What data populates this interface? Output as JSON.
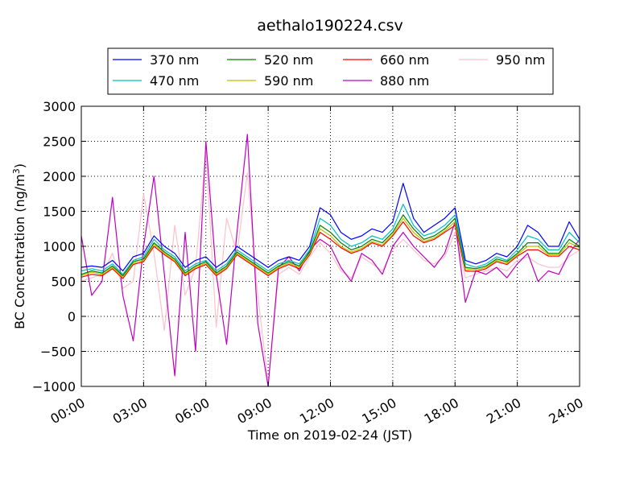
{
  "chart_data": {
    "type": "line",
    "title": "aethalo190224.csv",
    "xlabel": "Time on 2019-02-24 (JST)",
    "ylabel": "BC Concentration (ng/m³)",
    "ylabel_base": "BC Concentration (ng/m",
    "ylabel_sup": "3",
    "ylabel_tail": ")",
    "xlim": [
      0,
      24
    ],
    "ylim": [
      -1000,
      3000
    ],
    "x_ticks": [
      0,
      3,
      6,
      9,
      12,
      15,
      18,
      21,
      24
    ],
    "x_tick_labels": [
      "00:00",
      "03:00",
      "06:00",
      "09:00",
      "12:00",
      "15:00",
      "18:00",
      "21:00",
      "24:00"
    ],
    "y_ticks": [
      -1000,
      -500,
      0,
      500,
      1000,
      1500,
      2000,
      2500,
      3000
    ],
    "y_tick_labels": [
      "−1000",
      "−500",
      "0",
      "500",
      "1000",
      "1500",
      "2000",
      "2500",
      "3000"
    ],
    "grid": true,
    "legend_placement": "top-center, above plot",
    "x": [
      0,
      0.5,
      1,
      1.5,
      2,
      2.5,
      3,
      3.5,
      4,
      4.5,
      5,
      5.5,
      6,
      6.5,
      7,
      7.5,
      8,
      8.5,
      9,
      9.5,
      10,
      10.5,
      11,
      11.5,
      12,
      12.5,
      13,
      13.5,
      14,
      14.5,
      15,
      15.5,
      16,
      16.5,
      17,
      17.5,
      18,
      18.5,
      19,
      19.5,
      20,
      20.5,
      21,
      21.5,
      22,
      22.5,
      23,
      23.5,
      24
    ],
    "series": [
      {
        "name": "370 nm",
        "color": "#0000ff",
        "values": [
          700,
          720,
          700,
          800,
          650,
          850,
          900,
          1150,
          1000,
          900,
          700,
          800,
          850,
          700,
          800,
          1000,
          900,
          800,
          700,
          800,
          850,
          800,
          1000,
          1550,
          1450,
          1200,
          1100,
          1150,
          1250,
          1200,
          1350,
          1900,
          1400,
          1200,
          1300,
          1400,
          1550,
          800,
          750,
          800,
          900,
          850,
          1000,
          1300,
          1200,
          1000,
          1000,
          1350,
          1100
        ]
      },
      {
        "name": "470 nm",
        "color": "#00bfbf",
        "values": [
          650,
          680,
          650,
          750,
          600,
          800,
          850,
          1100,
          950,
          850,
          650,
          750,
          800,
          650,
          750,
          950,
          850,
          750,
          650,
          750,
          800,
          750,
          950,
          1400,
          1300,
          1100,
          1000,
          1050,
          1150,
          1100,
          1250,
          1600,
          1300,
          1150,
          1200,
          1300,
          1450,
          750,
          700,
          750,
          850,
          800,
          950,
          1150,
          1100,
          950,
          950,
          1200,
          1050
        ]
      },
      {
        "name": "520 nm",
        "color": "#008000",
        "values": [
          600,
          650,
          620,
          720,
          580,
          780,
          820,
          1050,
          920,
          820,
          620,
          720,
          780,
          620,
          720,
          920,
          820,
          720,
          620,
          720,
          780,
          720,
          920,
          1300,
          1200,
          1050,
          950,
          1000,
          1100,
          1050,
          1200,
          1450,
          1250,
          1100,
          1150,
          1250,
          1400,
          700,
          680,
          720,
          820,
          780,
          900,
          1050,
          1050,
          900,
          900,
          1100,
          1000
        ]
      },
      {
        "name": "590 nm",
        "color": "#bfbf00",
        "values": [
          580,
          630,
          600,
          700,
          560,
          760,
          800,
          1030,
          900,
          800,
          600,
          700,
          760,
          600,
          700,
          900,
          800,
          700,
          600,
          700,
          760,
          700,
          900,
          1250,
          1150,
          1000,
          920,
          970,
          1070,
          1020,
          1170,
          1400,
          1200,
          1070,
          1120,
          1220,
          1350,
          680,
          660,
          700,
          800,
          760,
          880,
          1000,
          1000,
          880,
          880,
          1050,
          980
        ]
      },
      {
        "name": "660 nm",
        "color": "#ff0000",
        "values": [
          560,
          600,
          580,
          680,
          540,
          740,
          780,
          1000,
          880,
          780,
          580,
          680,
          740,
          580,
          680,
          880,
          780,
          680,
          580,
          680,
          740,
          680,
          880,
          1200,
          1100,
          980,
          900,
          950,
          1050,
          1000,
          1150,
          1350,
          1150,
          1050,
          1100,
          1200,
          1300,
          650,
          640,
          680,
          780,
          740,
          860,
          950,
          950,
          860,
          860,
          1000,
          950
        ]
      },
      {
        "name": "880 nm",
        "color": "#bf00bf",
        "values": [
          1150,
          300,
          500,
          1700,
          300,
          -350,
          1000,
          2000,
          600,
          -850,
          1200,
          -500,
          2500,
          600,
          -400,
          1200,
          2600,
          -100,
          -1000,
          700,
          850,
          650,
          950,
          1100,
          1000,
          700,
          500,
          900,
          800,
          600,
          1000,
          1200,
          1000,
          850,
          700,
          900,
          1350,
          200,
          650,
          600,
          700,
          550,
          750,
          900,
          500,
          650,
          600,
          900,
          1100
        ]
      },
      {
        "name": "950 nm",
        "color": "#ffc0cb",
        "values": [
          500,
          550,
          600,
          900,
          400,
          500,
          1750,
          900,
          -200,
          1300,
          300,
          700,
          2350,
          -150,
          1400,
          900,
          2050,
          300,
          -950,
          600,
          700,
          600,
          850,
          1050,
          900,
          650,
          550,
          850,
          750,
          650,
          950,
          1100,
          950,
          800,
          750,
          850,
          1200,
          550,
          600,
          650,
          700,
          650,
          800,
          850,
          750,
          700,
          700,
          850,
          950
        ]
      }
    ]
  }
}
